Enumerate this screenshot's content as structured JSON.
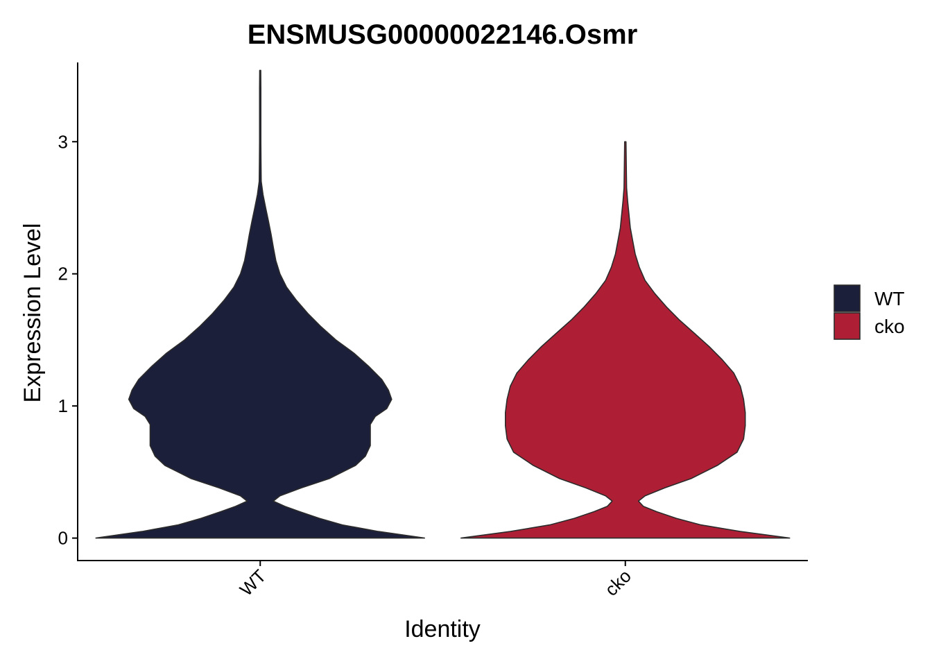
{
  "chart_data": {
    "type": "violin",
    "title": "ENSMUSG00000022146.Osmr",
    "xlabel": "Identity",
    "ylabel": "Expression Level",
    "categories": [
      "WT",
      "cko"
    ],
    "ylim": [
      -0.17,
      3.6
    ],
    "yticks": [
      "0",
      "1",
      "2",
      "3"
    ],
    "grid": false,
    "legend": {
      "position": "right",
      "entries": [
        "WT",
        "cko"
      ]
    },
    "colors": {
      "WT": "#1c1f3a",
      "cko": "#ae1f35",
      "outline": "#2b2b2b"
    },
    "series": [
      {
        "name": "WT",
        "max": 3.54,
        "density": [
          [
            0.0,
            1.0
          ],
          [
            0.05,
            0.72
          ],
          [
            0.1,
            0.5
          ],
          [
            0.15,
            0.36
          ],
          [
            0.2,
            0.24
          ],
          [
            0.24,
            0.15
          ],
          [
            0.28,
            0.08
          ],
          [
            0.32,
            0.12
          ],
          [
            0.38,
            0.25
          ],
          [
            0.45,
            0.42
          ],
          [
            0.55,
            0.58
          ],
          [
            0.62,
            0.64
          ],
          [
            0.7,
            0.67
          ],
          [
            0.78,
            0.67
          ],
          [
            0.86,
            0.67
          ],
          [
            0.92,
            0.7
          ],
          [
            0.98,
            0.77
          ],
          [
            1.05,
            0.8
          ],
          [
            1.12,
            0.78
          ],
          [
            1.2,
            0.74
          ],
          [
            1.3,
            0.66
          ],
          [
            1.4,
            0.57
          ],
          [
            1.5,
            0.46
          ],
          [
            1.6,
            0.37
          ],
          [
            1.7,
            0.29
          ],
          [
            1.8,
            0.22
          ],
          [
            1.9,
            0.16
          ],
          [
            2.0,
            0.12
          ],
          [
            2.1,
            0.095
          ],
          [
            2.2,
            0.08
          ],
          [
            2.3,
            0.066
          ],
          [
            2.4,
            0.05
          ],
          [
            2.5,
            0.033
          ],
          [
            2.6,
            0.017
          ],
          [
            2.7,
            0.006
          ],
          [
            2.85,
            0.005
          ],
          [
            3.0,
            0.004
          ],
          [
            3.2,
            0.004
          ],
          [
            3.4,
            0.004
          ],
          [
            3.54,
            0.003
          ]
        ]
      },
      {
        "name": "cko",
        "max": 3.0,
        "density": [
          [
            0.0,
            1.0
          ],
          [
            0.05,
            0.7
          ],
          [
            0.1,
            0.46
          ],
          [
            0.15,
            0.31
          ],
          [
            0.2,
            0.19
          ],
          [
            0.24,
            0.11
          ],
          [
            0.28,
            0.08
          ],
          [
            0.32,
            0.12
          ],
          [
            0.38,
            0.24
          ],
          [
            0.45,
            0.4
          ],
          [
            0.55,
            0.56
          ],
          [
            0.65,
            0.68
          ],
          [
            0.75,
            0.72
          ],
          [
            0.85,
            0.73
          ],
          [
            0.95,
            0.73
          ],
          [
            1.05,
            0.72
          ],
          [
            1.15,
            0.7
          ],
          [
            1.25,
            0.66
          ],
          [
            1.35,
            0.59
          ],
          [
            1.45,
            0.51
          ],
          [
            1.55,
            0.42
          ],
          [
            1.65,
            0.33
          ],
          [
            1.75,
            0.25
          ],
          [
            1.85,
            0.18
          ],
          [
            1.95,
            0.12
          ],
          [
            2.05,
            0.085
          ],
          [
            2.15,
            0.06
          ],
          [
            2.25,
            0.045
          ],
          [
            2.35,
            0.03
          ],
          [
            2.45,
            0.022
          ],
          [
            2.55,
            0.014
          ],
          [
            2.65,
            0.008
          ],
          [
            2.8,
            0.006
          ],
          [
            3.0,
            0.004
          ]
        ]
      }
    ]
  }
}
